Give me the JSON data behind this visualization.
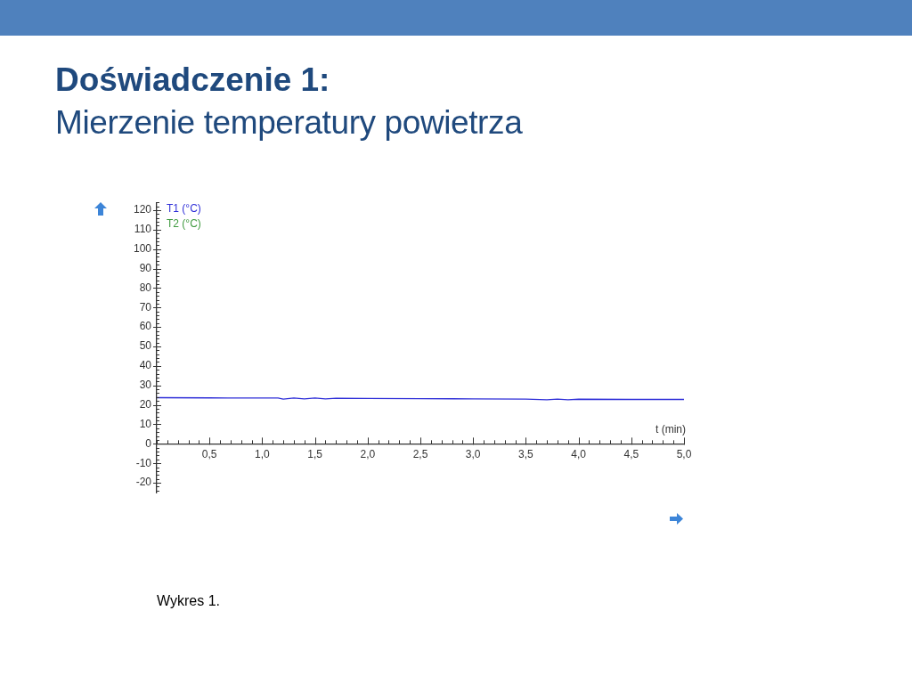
{
  "chart_data": {
    "type": "line",
    "title": "Doświadczenie 1:",
    "subtitle": "Mierzenie temperatury powietrza",
    "xlabel": "t (min)",
    "annotations": [
      "Wykres 1."
    ],
    "x": [
      0,
      0.5,
      1.0,
      1.15,
      1.2,
      1.3,
      1.4,
      1.5,
      1.6,
      1.7,
      2.0,
      2.5,
      3.0,
      3.5,
      3.7,
      3.8,
      3.9,
      4.0,
      4.5,
      5.0
    ],
    "series": [
      {
        "name": "T1 (°C)",
        "color": "#2f2fd8",
        "values": [
          23.7,
          23.6,
          23.5,
          23.5,
          23.0,
          23.5,
          23.1,
          23.5,
          23.1,
          23.4,
          23.3,
          23.2,
          23.1,
          23.0,
          22.6,
          23.0,
          22.6,
          22.9,
          22.8,
          22.8
        ]
      },
      {
        "name": "T2 (°C)",
        "color": "#3f9a3f",
        "values": [
          null,
          null,
          null,
          null,
          null,
          null,
          null,
          null,
          null,
          null,
          null,
          null,
          null,
          null,
          null,
          null,
          null,
          null,
          null,
          null
        ]
      }
    ],
    "xlim": [
      0,
      5
    ],
    "xticks": [
      {
        "value": 0,
        "label": null
      },
      {
        "value": 0.1,
        "label": null
      },
      {
        "value": 0.2,
        "label": null
      },
      {
        "value": 0.3,
        "label": null
      },
      {
        "value": 0.4,
        "label": null
      },
      {
        "value": 0.5,
        "label": "0,5"
      },
      {
        "value": 0.6,
        "label": null
      },
      {
        "value": 0.7,
        "label": null
      },
      {
        "value": 0.8,
        "label": null
      },
      {
        "value": 0.9,
        "label": null
      },
      {
        "value": 1.0,
        "label": "1,0"
      },
      {
        "value": 1.1,
        "label": null
      },
      {
        "value": 1.2,
        "label": null
      },
      {
        "value": 1.3,
        "label": null
      },
      {
        "value": 1.4,
        "label": null
      },
      {
        "value": 1.5,
        "label": "1,5"
      },
      {
        "value": 1.6,
        "label": null
      },
      {
        "value": 1.7,
        "label": null
      },
      {
        "value": 1.8,
        "label": null
      },
      {
        "value": 1.9,
        "label": null
      },
      {
        "value": 2.0,
        "label": "2,0"
      },
      {
        "value": 2.1,
        "label": null
      },
      {
        "value": 2.2,
        "label": null
      },
      {
        "value": 2.3,
        "label": null
      },
      {
        "value": 2.4,
        "label": null
      },
      {
        "value": 2.5,
        "label": "2,5"
      },
      {
        "value": 2.6,
        "label": null
      },
      {
        "value": 2.7,
        "label": null
      },
      {
        "value": 2.8,
        "label": null
      },
      {
        "value": 2.9,
        "label": null
      },
      {
        "value": 3.0,
        "label": "3,0"
      },
      {
        "value": 3.1,
        "label": null
      },
      {
        "value": 3.2,
        "label": null
      },
      {
        "value": 3.3,
        "label": null
      },
      {
        "value": 3.4,
        "label": null
      },
      {
        "value": 3.5,
        "label": "3,5"
      },
      {
        "value": 3.6,
        "label": null
      },
      {
        "value": 3.7,
        "label": null
      },
      {
        "value": 3.8,
        "label": null
      },
      {
        "value": 3.9,
        "label": null
      },
      {
        "value": 4.0,
        "label": "4,0"
      },
      {
        "value": 4.1,
        "label": null
      },
      {
        "value": 4.2,
        "label": null
      },
      {
        "value": 4.3,
        "label": null
      },
      {
        "value": 4.4,
        "label": null
      },
      {
        "value": 4.5,
        "label": "4,5"
      },
      {
        "value": 4.6,
        "label": null
      },
      {
        "value": 4.7,
        "label": null
      },
      {
        "value": 4.8,
        "label": null
      },
      {
        "value": 4.9,
        "label": null
      },
      {
        "value": 5.0,
        "label": "5,0"
      }
    ],
    "ylim": [
      -25,
      124
    ],
    "yticks": [
      {
        "value": -24,
        "label": null
      },
      {
        "value": -22,
        "label": null
      },
      -20,
      {
        "value": -18,
        "label": null
      },
      {
        "value": -16,
        "label": null
      },
      {
        "value": -14,
        "label": null
      },
      {
        "value": -12,
        "label": null
      },
      -10,
      {
        "value": -8,
        "label": null
      },
      {
        "value": -6,
        "label": null
      },
      {
        "value": -4,
        "label": null
      },
      {
        "value": -2,
        "label": null
      },
      0,
      {
        "value": 2,
        "label": null
      },
      {
        "value": 4,
        "label": null
      },
      {
        "value": 6,
        "label": null
      },
      {
        "value": 8,
        "label": null
      },
      10,
      {
        "value": 12,
        "label": null
      },
      {
        "value": 14,
        "label": null
      },
      {
        "value": 16,
        "label": null
      },
      {
        "value": 18,
        "label": null
      },
      20,
      {
        "value": 22,
        "label": null
      },
      {
        "value": 24,
        "label": null
      },
      {
        "value": 26,
        "label": null
      },
      {
        "value": 28,
        "label": null
      },
      30,
      {
        "value": 32,
        "label": null
      },
      {
        "value": 34,
        "label": null
      },
      {
        "value": 36,
        "label": null
      },
      {
        "value": 38,
        "label": null
      },
      40,
      {
        "value": 42,
        "label": null
      },
      {
        "value": 44,
        "label": null
      },
      {
        "value": 46,
        "label": null
      },
      {
        "value": 48,
        "label": null
      },
      50,
      {
        "value": 52,
        "label": null
      },
      {
        "value": 54,
        "label": null
      },
      {
        "value": 56,
        "label": null
      },
      {
        "value": 58,
        "label": null
      },
      60,
      {
        "value": 62,
        "label": null
      },
      {
        "value": 64,
        "label": null
      },
      {
        "value": 66,
        "label": null
      },
      {
        "value": 68,
        "label": null
      },
      70,
      {
        "value": 72,
        "label": null
      },
      {
        "value": 74,
        "label": null
      },
      {
        "value": 76,
        "label": null
      },
      {
        "value": 78,
        "label": null
      },
      80,
      {
        "value": 82,
        "label": null
      },
      {
        "value": 84,
        "label": null
      },
      {
        "value": 86,
        "label": null
      },
      {
        "value": 88,
        "label": null
      },
      90,
      {
        "value": 92,
        "label": null
      },
      {
        "value": 94,
        "label": null
      },
      {
        "value": 96,
        "label": null
      },
      {
        "value": 98,
        "label": null
      },
      100,
      {
        "value": 102,
        "label": null
      },
      {
        "value": 104,
        "label": null
      },
      {
        "value": 106,
        "label": null
      },
      {
        "value": 108,
        "label": null
      },
      110,
      {
        "value": 112,
        "label": null
      },
      {
        "value": 114,
        "label": null
      },
      {
        "value": 116,
        "label": null
      },
      {
        "value": 118,
        "label": null
      },
      120,
      {
        "value": 122,
        "label": null
      },
      {
        "value": 124,
        "label": null
      }
    ],
    "legend": "top left",
    "marker": "none",
    "line_style": "solid"
  }
}
